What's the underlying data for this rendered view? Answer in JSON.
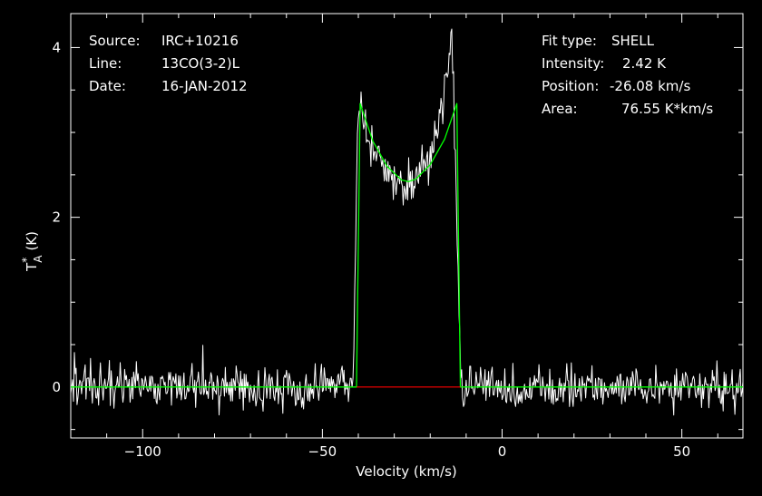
{
  "info": {
    "source_key": "Source:",
    "source_val": "IRC+10216",
    "line_key": "Line:",
    "line_val": "13CO(3-2)L",
    "date_key": "Date:",
    "date_val": "16-JAN-2012",
    "fit_key": "Fit type:",
    "fit_val": "SHELL",
    "intensity_key": "Intensity:",
    "intensity_val": "2.42 K",
    "position_key": "Position:",
    "position_val": "-26.08 km/s",
    "area_key": "Area:",
    "area_val": "76.55 K*km/s"
  },
  "colors": {
    "background": "#000000",
    "axes": "#ffffff",
    "spectrum": "#ffffff",
    "fit": "#00ff00",
    "baseline": "#ff0000"
  },
  "chart_data": {
    "type": "line",
    "xlabel": "Velocity (km/s)",
    "ylabel": "T",
    "ylabel_sup": "*",
    "ylabel_sub": "A",
    "ylabel_unit": "(K)",
    "xlim": [
      -120,
      67
    ],
    "ylim": [
      -0.6,
      4.4
    ],
    "xticks": [
      -100,
      -50,
      0,
      50
    ],
    "xtick_labels": [
      "−100",
      "−50",
      "0",
      "50"
    ],
    "yticks": [
      0,
      2,
      4
    ],
    "ytick_labels": [
      "0",
      "2",
      "4"
    ],
    "xminor_step": 10,
    "yminor_step": 0.5,
    "series": [
      {
        "role": "spectrum",
        "shape": "noisy",
        "color": "#ffffff",
        "noise_rms": 0.13,
        "channel_width": 0.25,
        "profile": [
          [
            -120,
            0
          ],
          [
            -41.5,
            0
          ],
          [
            -40.0,
            3.3
          ],
          [
            -38,
            3.05
          ],
          [
            -35,
            2.8
          ],
          [
            -32,
            2.5
          ],
          [
            -29,
            2.35
          ],
          [
            -26,
            2.4
          ],
          [
            -23,
            2.55
          ],
          [
            -20,
            2.75
          ],
          [
            -18,
            3.0
          ],
          [
            -16,
            3.45
          ],
          [
            -15,
            3.8
          ],
          [
            -14.3,
            4.1
          ],
          [
            -13.4,
            3.5
          ],
          [
            -11.5,
            0
          ],
          [
            67,
            0
          ]
        ]
      },
      {
        "role": "fit",
        "shape": "smooth",
        "color": "#00ff00",
        "points": [
          [
            -120,
            0
          ],
          [
            -40.5,
            0
          ],
          [
            -39.5,
            3.34
          ],
          [
            -36,
            2.9
          ],
          [
            -32,
            2.6
          ],
          [
            -28,
            2.44
          ],
          [
            -26.08,
            2.42
          ],
          [
            -24,
            2.45
          ],
          [
            -20,
            2.62
          ],
          [
            -16,
            2.92
          ],
          [
            -12.6,
            3.34
          ],
          [
            -11.6,
            0
          ],
          [
            67,
            0
          ]
        ]
      },
      {
        "role": "baseline",
        "shape": "smooth",
        "color": "#ff0000",
        "points": [
          [
            -40.5,
            0
          ],
          [
            -11.6,
            0
          ]
        ]
      }
    ]
  }
}
